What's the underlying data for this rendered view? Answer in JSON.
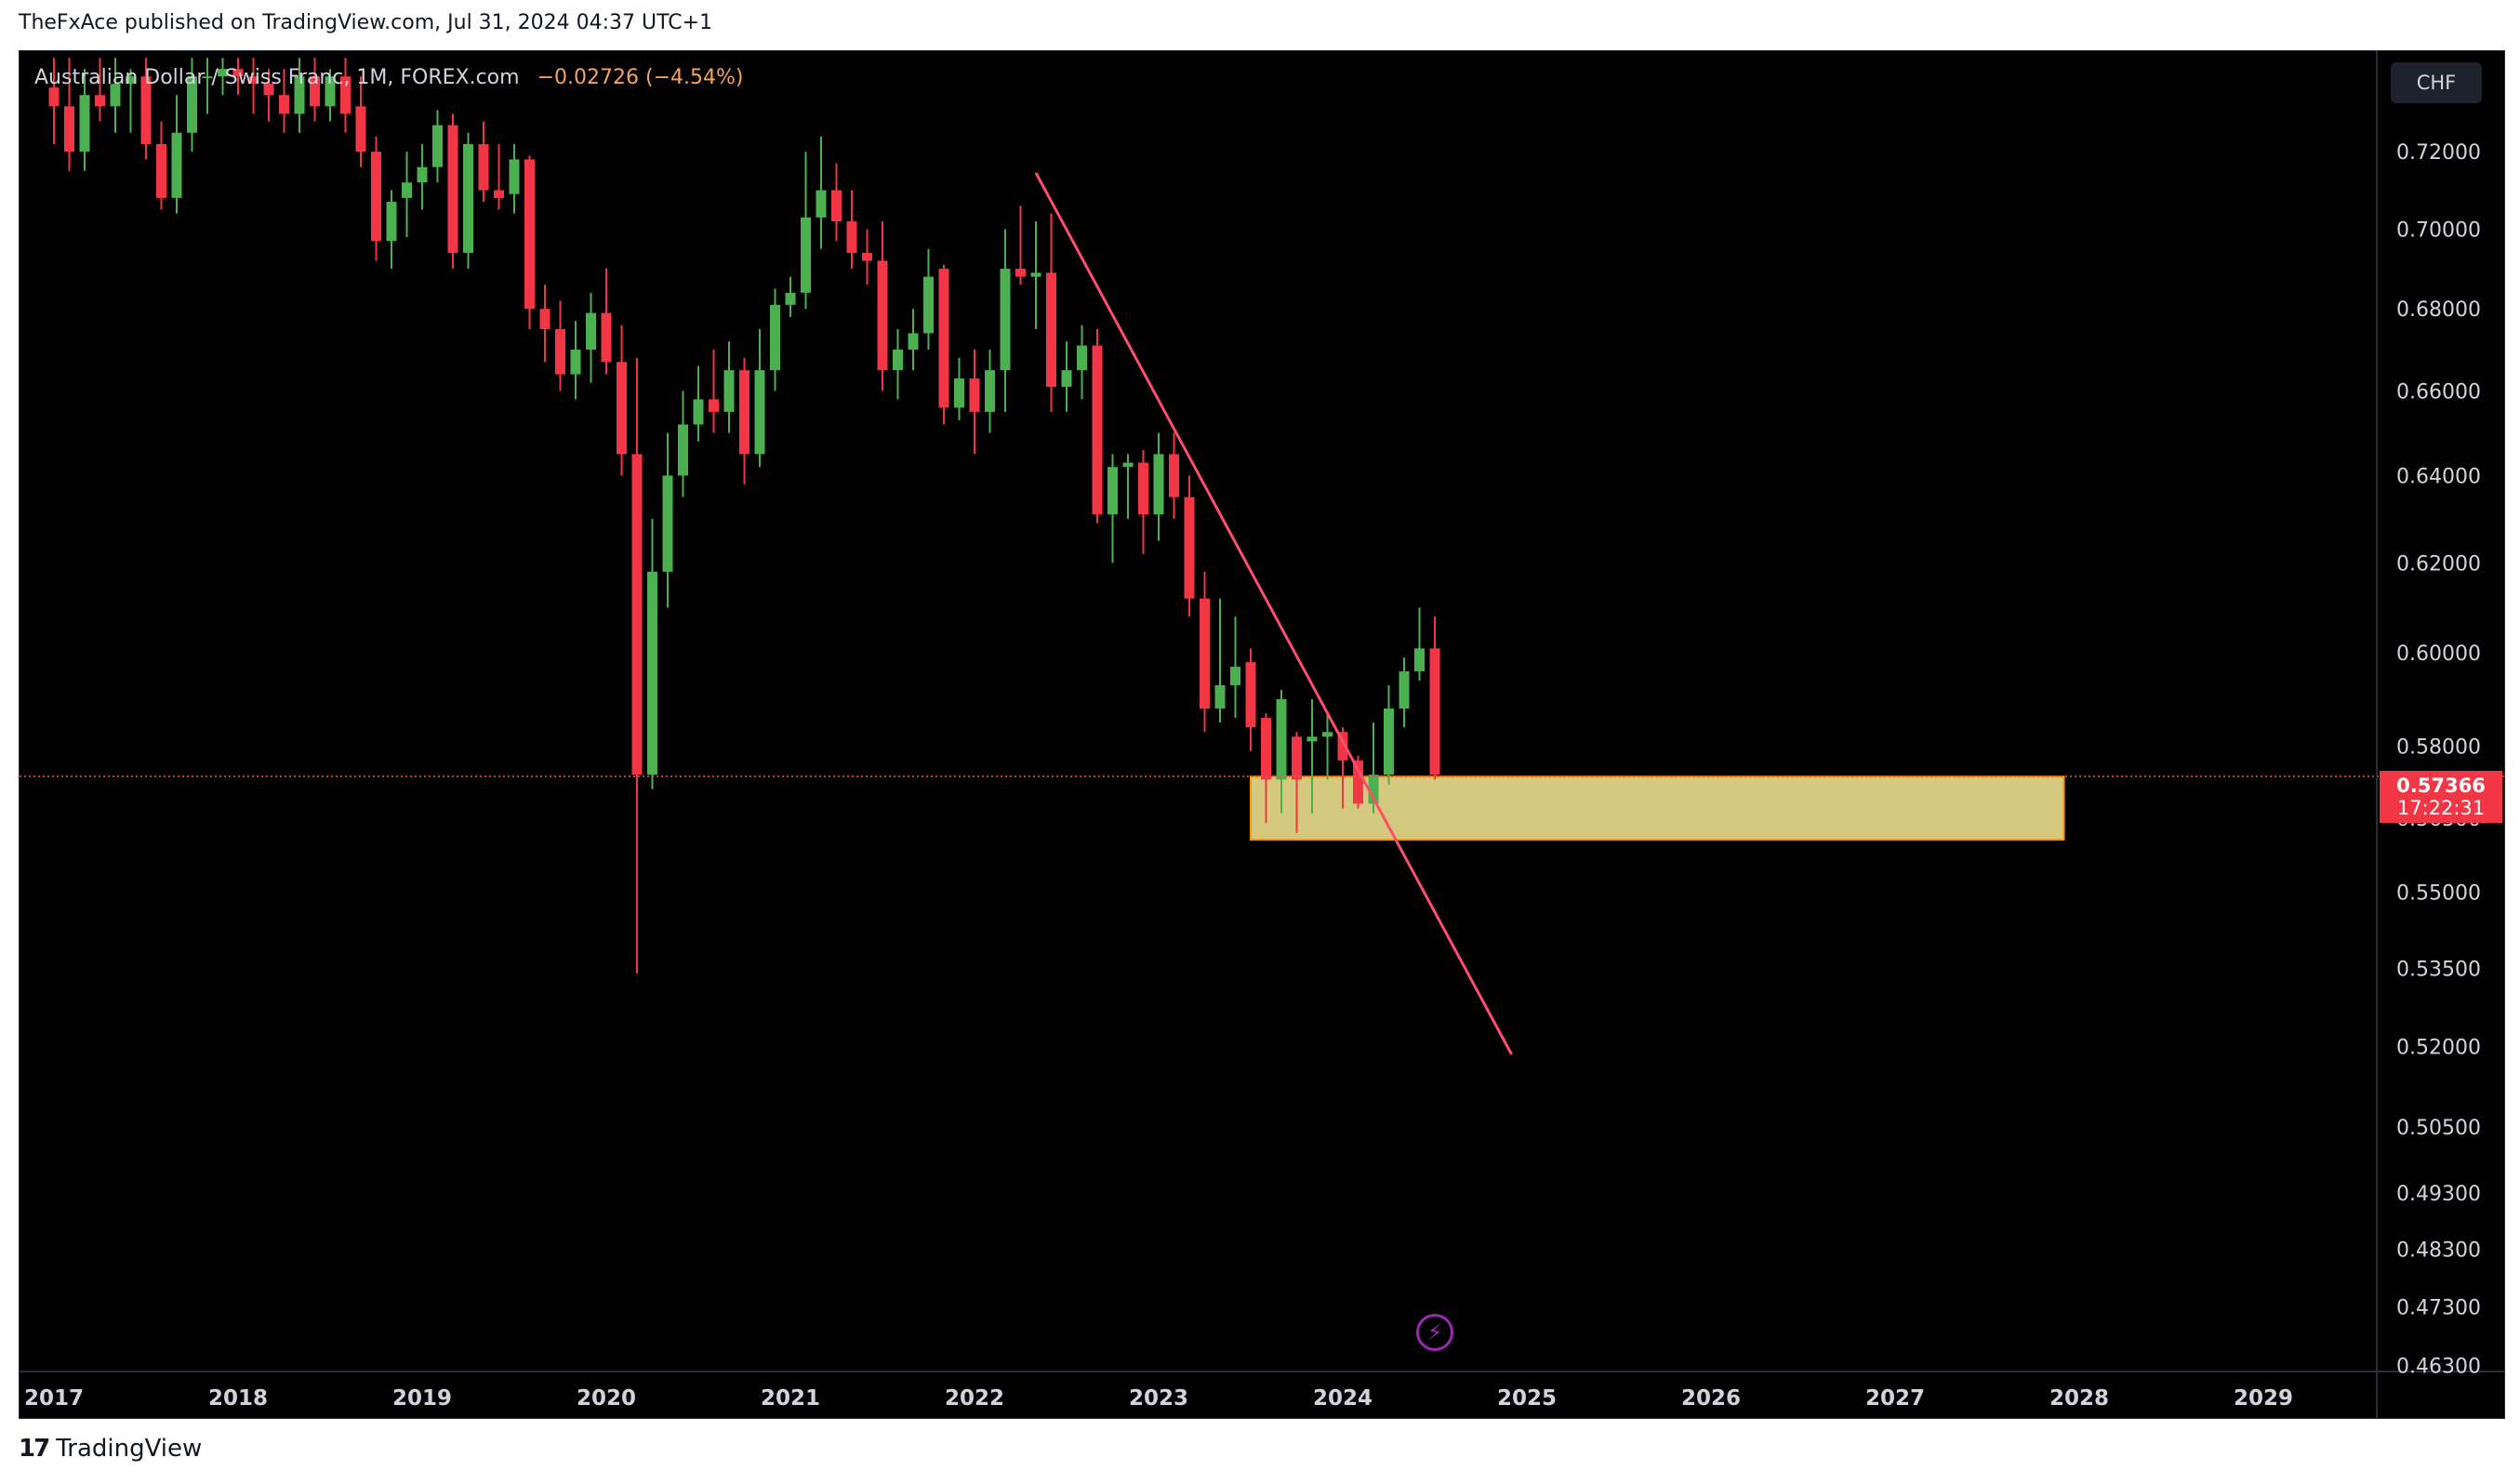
{
  "header": {
    "publisher_line": "TheFxAce published on TradingView.com, Jul 31, 2024 04:37 UTC+1"
  },
  "footer": {
    "logo_glyph": "17",
    "brand": "TradingView"
  },
  "legend": {
    "symbol": "Australian Dollar / Swiss Franc, 1M, FOREX.com",
    "change": "−0.02726 (−4.54%)"
  },
  "currency_button": "CHF",
  "price_badge": {
    "price": "0.57366",
    "countdown": "17:22:31"
  },
  "colors": {
    "bull": "#4caf50",
    "bear": "#f23645",
    "zone_fill": "#d4c97e",
    "zone_border": "#ff9800",
    "trendline": "#ff4d6d",
    "price_line": "#ff4d4d",
    "axis_text": "#d1d4dc"
  },
  "icons": {
    "replay": "lightning-bolt-icon"
  },
  "chart_data": {
    "type": "candlestick",
    "symbol": "AUDCHF",
    "interval": "1M",
    "y_axis": {
      "side": "right",
      "ylim": [
        0.463,
        0.735
      ],
      "ticks": [
        "0.72000",
        "0.70000",
        "0.68000",
        "0.66000",
        "0.64000",
        "0.62000",
        "0.60000",
        "0.58000",
        "0.56500",
        "0.55000",
        "0.53500",
        "0.52000",
        "0.50500",
        "0.49300",
        "0.48300",
        "0.47300",
        "0.46300"
      ]
    },
    "x_axis": {
      "labels": [
        "2017",
        "2018",
        "2019",
        "2020",
        "2021",
        "2022",
        "2023",
        "2024",
        "2025",
        "2026",
        "2027",
        "2028",
        "2029"
      ]
    },
    "last_price": 0.57366,
    "candles": [
      {
        "t": "2017-01",
        "o": 0.737,
        "h": 0.745,
        "l": 0.722,
        "c": 0.732
      },
      {
        "t": "2017-02",
        "o": 0.732,
        "h": 0.745,
        "l": 0.715,
        "c": 0.72
      },
      {
        "t": "2017-03",
        "o": 0.72,
        "h": 0.742,
        "l": 0.715,
        "c": 0.735
      },
      {
        "t": "2017-04",
        "o": 0.735,
        "h": 0.745,
        "l": 0.728,
        "c": 0.732
      },
      {
        "t": "2017-05",
        "o": 0.732,
        "h": 0.745,
        "l": 0.725,
        "c": 0.738
      },
      {
        "t": "2017-06",
        "o": 0.738,
        "h": 0.742,
        "l": 0.725,
        "c": 0.74
      },
      {
        "t": "2017-07",
        "o": 0.74,
        "h": 0.745,
        "l": 0.718,
        "c": 0.722
      },
      {
        "t": "2017-08",
        "o": 0.722,
        "h": 0.728,
        "l": 0.705,
        "c": 0.708
      },
      {
        "t": "2017-09",
        "o": 0.708,
        "h": 0.735,
        "l": 0.704,
        "c": 0.725
      },
      {
        "t": "2017-10",
        "o": 0.725,
        "h": 0.745,
        "l": 0.72,
        "c": 0.74
      },
      {
        "t": "2017-11",
        "o": 0.74,
        "h": 0.745,
        "l": 0.73,
        "c": 0.74
      },
      {
        "t": "2017-12",
        "o": 0.74,
        "h": 0.745,
        "l": 0.735,
        "c": 0.742
      },
      {
        "t": "2018-01",
        "o": 0.742,
        "h": 0.745,
        "l": 0.735,
        "c": 0.74
      },
      {
        "t": "2018-02",
        "o": 0.74,
        "h": 0.745,
        "l": 0.73,
        "c": 0.738
      },
      {
        "t": "2018-03",
        "o": 0.738,
        "h": 0.742,
        "l": 0.728,
        "c": 0.735
      },
      {
        "t": "2018-04",
        "o": 0.735,
        "h": 0.742,
        "l": 0.725,
        "c": 0.73
      },
      {
        "t": "2018-05",
        "o": 0.73,
        "h": 0.745,
        "l": 0.725,
        "c": 0.74
      },
      {
        "t": "2018-06",
        "o": 0.74,
        "h": 0.745,
        "l": 0.728,
        "c": 0.732
      },
      {
        "t": "2018-07",
        "o": 0.732,
        "h": 0.742,
        "l": 0.728,
        "c": 0.74
      },
      {
        "t": "2018-08",
        "o": 0.74,
        "h": 0.745,
        "l": 0.725,
        "c": 0.73
      },
      {
        "t": "2018-09",
        "o": 0.732,
        "h": 0.74,
        "l": 0.716,
        "c": 0.72
      },
      {
        "t": "2018-10",
        "o": 0.72,
        "h": 0.724,
        "l": 0.692,
        "c": 0.697
      },
      {
        "t": "2018-11",
        "o": 0.697,
        "h": 0.71,
        "l": 0.69,
        "c": 0.707
      },
      {
        "t": "2018-12",
        "o": 0.708,
        "h": 0.72,
        "l": 0.698,
        "c": 0.712
      },
      {
        "t": "2019-01",
        "o": 0.712,
        "h": 0.722,
        "l": 0.705,
        "c": 0.716
      },
      {
        "t": "2019-02",
        "o": 0.716,
        "h": 0.731,
        "l": 0.712,
        "c": 0.727
      },
      {
        "t": "2019-03",
        "o": 0.727,
        "h": 0.73,
        "l": 0.69,
        "c": 0.694
      },
      {
        "t": "2019-04",
        "o": 0.694,
        "h": 0.725,
        "l": 0.69,
        "c": 0.722
      },
      {
        "t": "2019-05",
        "o": 0.722,
        "h": 0.728,
        "l": 0.707,
        "c": 0.71
      },
      {
        "t": "2019-06",
        "o": 0.71,
        "h": 0.722,
        "l": 0.705,
        "c": 0.708
      },
      {
        "t": "2019-07",
        "o": 0.709,
        "h": 0.722,
        "l": 0.704,
        "c": 0.718
      },
      {
        "t": "2019-08",
        "o": 0.718,
        "h": 0.719,
        "l": 0.675,
        "c": 0.68
      },
      {
        "t": "2019-09",
        "o": 0.68,
        "h": 0.686,
        "l": 0.667,
        "c": 0.675
      },
      {
        "t": "2019-10",
        "o": 0.675,
        "h": 0.682,
        "l": 0.66,
        "c": 0.664
      },
      {
        "t": "2019-11",
        "o": 0.664,
        "h": 0.677,
        "l": 0.658,
        "c": 0.67
      },
      {
        "t": "2019-12",
        "o": 0.67,
        "h": 0.684,
        "l": 0.662,
        "c": 0.679
      },
      {
        "t": "2020-01",
        "o": 0.679,
        "h": 0.69,
        "l": 0.664,
        "c": 0.667
      },
      {
        "t": "2020-02",
        "o": 0.667,
        "h": 0.676,
        "l": 0.64,
        "c": 0.645
      },
      {
        "t": "2020-03",
        "o": 0.645,
        "h": 0.668,
        "l": 0.534,
        "c": 0.574
      },
      {
        "t": "2020-04",
        "o": 0.574,
        "h": 0.63,
        "l": 0.571,
        "c": 0.618
      },
      {
        "t": "2020-05",
        "o": 0.618,
        "h": 0.65,
        "l": 0.61,
        "c": 0.64
      },
      {
        "t": "2020-06",
        "o": 0.64,
        "h": 0.66,
        "l": 0.635,
        "c": 0.652
      },
      {
        "t": "2020-07",
        "o": 0.652,
        "h": 0.666,
        "l": 0.648,
        "c": 0.658
      },
      {
        "t": "2020-08",
        "o": 0.658,
        "h": 0.67,
        "l": 0.65,
        "c": 0.655
      },
      {
        "t": "2020-09",
        "o": 0.655,
        "h": 0.672,
        "l": 0.65,
        "c": 0.665
      },
      {
        "t": "2020-10",
        "o": 0.665,
        "h": 0.668,
        "l": 0.638,
        "c": 0.645
      },
      {
        "t": "2020-11",
        "o": 0.645,
        "h": 0.675,
        "l": 0.642,
        "c": 0.665
      },
      {
        "t": "2020-12",
        "o": 0.665,
        "h": 0.685,
        "l": 0.66,
        "c": 0.681
      },
      {
        "t": "2021-01",
        "o": 0.681,
        "h": 0.688,
        "l": 0.678,
        "c": 0.684
      },
      {
        "t": "2021-02",
        "o": 0.684,
        "h": 0.72,
        "l": 0.68,
        "c": 0.703
      },
      {
        "t": "2021-03",
        "o": 0.703,
        "h": 0.724,
        "l": 0.695,
        "c": 0.71
      },
      {
        "t": "2021-04",
        "o": 0.71,
        "h": 0.717,
        "l": 0.697,
        "c": 0.702
      },
      {
        "t": "2021-05",
        "o": 0.702,
        "h": 0.71,
        "l": 0.69,
        "c": 0.694
      },
      {
        "t": "2021-06",
        "o": 0.694,
        "h": 0.7,
        "l": 0.686,
        "c": 0.692
      },
      {
        "t": "2021-07",
        "o": 0.692,
        "h": 0.702,
        "l": 0.66,
        "c": 0.665
      },
      {
        "t": "2021-08",
        "o": 0.665,
        "h": 0.675,
        "l": 0.658,
        "c": 0.67
      },
      {
        "t": "2021-09",
        "o": 0.67,
        "h": 0.68,
        "l": 0.665,
        "c": 0.674
      },
      {
        "t": "2021-10",
        "o": 0.674,
        "h": 0.695,
        "l": 0.67,
        "c": 0.688
      },
      {
        "t": "2021-11",
        "o": 0.69,
        "h": 0.691,
        "l": 0.652,
        "c": 0.656
      },
      {
        "t": "2021-12",
        "o": 0.656,
        "h": 0.668,
        "l": 0.653,
        "c": 0.663
      },
      {
        "t": "2022-01",
        "o": 0.663,
        "h": 0.67,
        "l": 0.645,
        "c": 0.655
      },
      {
        "t": "2022-02",
        "o": 0.655,
        "h": 0.67,
        "l": 0.65,
        "c": 0.665
      },
      {
        "t": "2022-03",
        "o": 0.665,
        "h": 0.7,
        "l": 0.655,
        "c": 0.69
      },
      {
        "t": "2022-04",
        "o": 0.69,
        "h": 0.706,
        "l": 0.686,
        "c": 0.688
      },
      {
        "t": "2022-05",
        "o": 0.688,
        "h": 0.702,
        "l": 0.675,
        "c": 0.689
      },
      {
        "t": "2022-06",
        "o": 0.689,
        "h": 0.704,
        "l": 0.655,
        "c": 0.661
      },
      {
        "t": "2022-07",
        "o": 0.661,
        "h": 0.672,
        "l": 0.655,
        "c": 0.665
      },
      {
        "t": "2022-08",
        "o": 0.665,
        "h": 0.676,
        "l": 0.658,
        "c": 0.671
      },
      {
        "t": "2022-09",
        "o": 0.671,
        "h": 0.675,
        "l": 0.629,
        "c": 0.631
      },
      {
        "t": "2022-10",
        "o": 0.631,
        "h": 0.645,
        "l": 0.62,
        "c": 0.642
      },
      {
        "t": "2022-11",
        "o": 0.642,
        "h": 0.645,
        "l": 0.63,
        "c": 0.643
      },
      {
        "t": "2022-12",
        "o": 0.643,
        "h": 0.646,
        "l": 0.622,
        "c": 0.631
      },
      {
        "t": "2023-01",
        "o": 0.631,
        "h": 0.65,
        "l": 0.625,
        "c": 0.645
      },
      {
        "t": "2023-02",
        "o": 0.645,
        "h": 0.65,
        "l": 0.63,
        "c": 0.635
      },
      {
        "t": "2023-03",
        "o": 0.635,
        "h": 0.64,
        "l": 0.608,
        "c": 0.612
      },
      {
        "t": "2023-04",
        "o": 0.612,
        "h": 0.618,
        "l": 0.583,
        "c": 0.588
      },
      {
        "t": "2023-05",
        "o": 0.588,
        "h": 0.612,
        "l": 0.585,
        "c": 0.593
      },
      {
        "t": "2023-06",
        "o": 0.593,
        "h": 0.608,
        "l": 0.586,
        "c": 0.597
      },
      {
        "t": "2023-07",
        "o": 0.598,
        "h": 0.601,
        "l": 0.579,
        "c": 0.584
      },
      {
        "t": "2023-08",
        "o": 0.586,
        "h": 0.587,
        "l": 0.564,
        "c": 0.573
      },
      {
        "t": "2023-09",
        "o": 0.573,
        "h": 0.592,
        "l": 0.566,
        "c": 0.59
      },
      {
        "t": "2023-10",
        "o": 0.582,
        "h": 0.583,
        "l": 0.562,
        "c": 0.573
      },
      {
        "t": "2023-11",
        "o": 0.581,
        "h": 0.59,
        "l": 0.566,
        "c": 0.582
      },
      {
        "t": "2023-12",
        "o": 0.582,
        "h": 0.587,
        "l": 0.573,
        "c": 0.583
      },
      {
        "t": "2024-01",
        "o": 0.583,
        "h": 0.584,
        "l": 0.567,
        "c": 0.577
      },
      {
        "t": "2024-02",
        "o": 0.577,
        "h": 0.578,
        "l": 0.567,
        "c": 0.568
      },
      {
        "t": "2024-03",
        "o": 0.568,
        "h": 0.585,
        "l": 0.566,
        "c": 0.574
      },
      {
        "t": "2024-04",
        "o": 0.574,
        "h": 0.593,
        "l": 0.572,
        "c": 0.588
      },
      {
        "t": "2024-05",
        "o": 0.588,
        "h": 0.599,
        "l": 0.584,
        "c": 0.596
      },
      {
        "t": "2024-06",
        "o": 0.596,
        "h": 0.61,
        "l": 0.594,
        "c": 0.601
      },
      {
        "t": "2024-07",
        "o": 0.601,
        "h": 0.608,
        "l": 0.573,
        "c": 0.574
      }
    ],
    "annotations": [
      {
        "type": "trendline",
        "from": {
          "t": "2022-05",
          "price": 0.7145
        },
        "to": {
          "t": "2024-12",
          "price": 0.5185
        }
      },
      {
        "type": "zone",
        "from_t": "2023-07",
        "to_t": "2027-12",
        "top": 0.5736,
        "bottom": 0.5606
      }
    ]
  }
}
